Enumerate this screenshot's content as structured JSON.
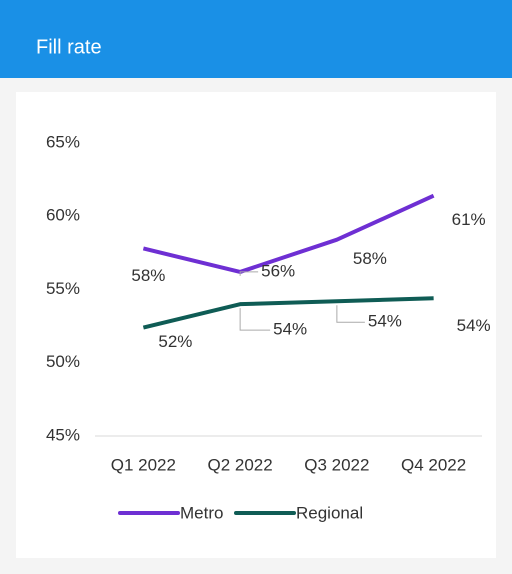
{
  "chart_data": {
    "type": "line",
    "title": "Fill rate",
    "categories": [
      "Q1 2022",
      "Q2 2022",
      "Q3 2022",
      "Q4 2022"
    ],
    "series": [
      {
        "name": "Metro",
        "color": "#6e2fd3",
        "values": [
          57.8,
          56.2,
          58.4,
          61.4
        ],
        "value_labels": [
          "58%",
          "56%",
          "58%",
          "61%"
        ]
      },
      {
        "name": "Regional",
        "color": "#0f5c55",
        "values": [
          52.4,
          54.0,
          54.2,
          54.4
        ],
        "value_labels": [
          "52%",
          "54%",
          "54%",
          "54%"
        ]
      }
    ],
    "ylim": [
      45,
      65
    ],
    "yticks": [
      {
        "value": 45,
        "label": "45%"
      },
      {
        "value": 50,
        "label": "50%"
      },
      {
        "value": 55,
        "label": "55%"
      },
      {
        "value": 60,
        "label": "60%"
      },
      {
        "value": 65,
        "label": "65%"
      }
    ],
    "legend": "bottom"
  }
}
